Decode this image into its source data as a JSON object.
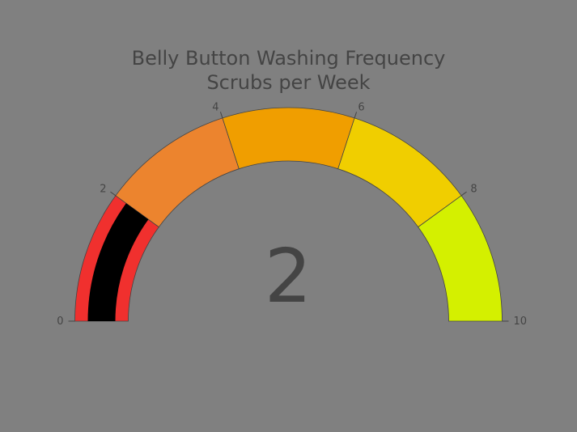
{
  "chart_data": {
    "type": "gauge",
    "title_lines": [
      "Belly Button Washing Frequency",
      "Scrubs per Week"
    ],
    "value": 2,
    "range": [
      0,
      10
    ],
    "ticks": [
      0,
      2,
      4,
      6,
      8,
      10
    ],
    "steps": [
      {
        "range": [
          0,
          2
        ],
        "color": "#f0302e"
      },
      {
        "range": [
          2,
          4
        ],
        "color": "#ec842e"
      },
      {
        "range": [
          4,
          6
        ],
        "color": "#f09e00"
      },
      {
        "range": [
          6,
          8
        ],
        "color": "#f0ce00"
      },
      {
        "range": [
          8,
          10
        ],
        "color": "#d4f000"
      }
    ],
    "bar_color": "#000000",
    "background_color": "#808080",
    "text_color": "#444444"
  }
}
